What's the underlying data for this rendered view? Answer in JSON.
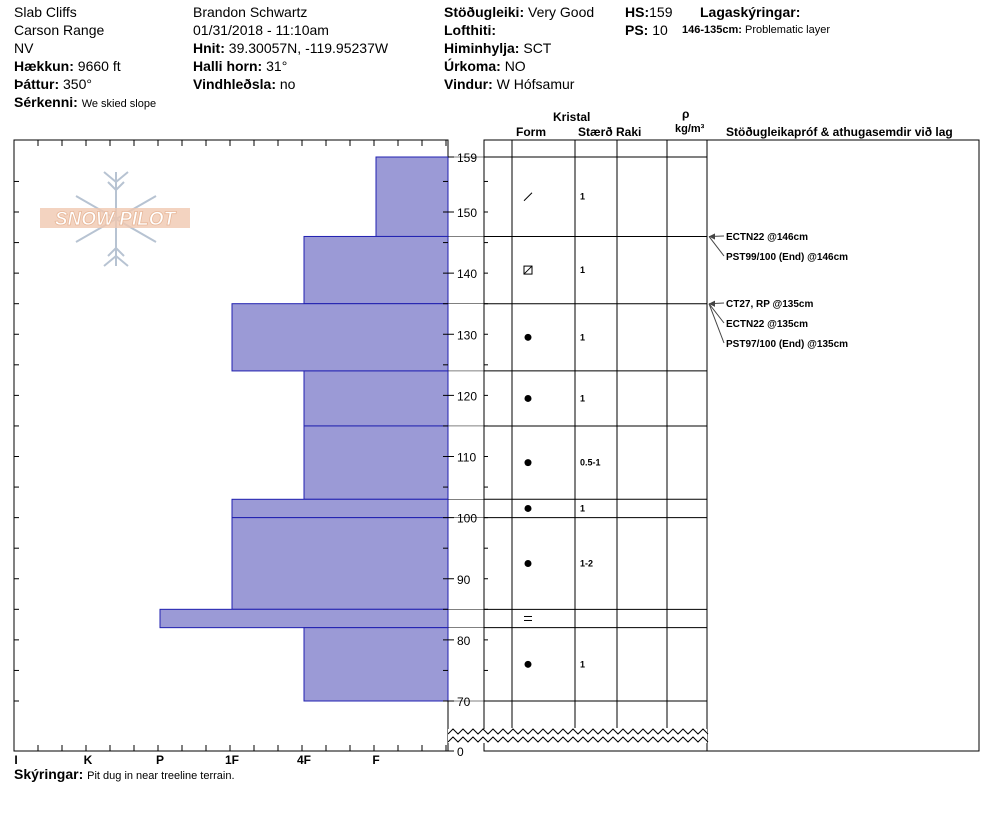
{
  "header": {
    "location": "Slab Cliffs",
    "range": "Carson Range",
    "state": "NV",
    "elevation_label": "Hækkun:",
    "elevation": "9660 ft",
    "aspect_label": "Þáttur:",
    "aspect": "350°",
    "feature_label": "Sérkenni:",
    "feature": "We skied slope",
    "observer": "Brandon Schwartz",
    "datetime": "01/31/2018 - 11:10am",
    "coords_label": "Hnit:",
    "coords": "39.30057N, -119.95237W",
    "slope_label": "Halli horn:",
    "slope": "31°",
    "wind_loading_label": "Vindhleðsla:",
    "wind_loading": "no",
    "stability_label": "Stöðugleiki:",
    "stability": "Very Good",
    "air_temp_label": "Lofthiti:",
    "air_temp": "",
    "sky_label": "Himinhylja:",
    "sky": "SCT",
    "precip_label": "Úrkoma:",
    "precip": "NO",
    "wind_label": "Vindur:",
    "wind": "W Hófsamur",
    "hs_label": "HS:",
    "hs": "159",
    "ps_label": "PS:",
    "ps": "10",
    "layer_notes_label": "Lagaskýringar:",
    "layer_note_range": "146-135cm:",
    "layer_note_text": "Problematic layer"
  },
  "columns": {
    "crystal": "Kristal",
    "form": "Form",
    "size": "Stærð",
    "moisture": "Raki",
    "density_symbol": "ρ",
    "density_unit": "kg/m³",
    "tests": "Stöðugleikapróf & athugasemdir við lag"
  },
  "footer": {
    "notes_label": "Skýringar:",
    "notes": "Pit dug in near treeline terrain."
  },
  "logo_text": "SNOW PILOT",
  "chart_data": {
    "type": "bar",
    "orientation": "horizontal",
    "description_axis": "height (cm)",
    "ylim": [
      0,
      159
    ],
    "y_ticks": [
      159,
      150,
      140,
      130,
      120,
      110,
      100,
      90,
      80,
      70,
      0
    ],
    "hardness_scale": [
      "I",
      "K",
      "P",
      "1F",
      "4F",
      "F"
    ],
    "hardness_index": {
      "F": 1,
      "4F": 2,
      "1F": 3,
      "P": 4,
      "K": 5,
      "I": 6
    },
    "layers": [
      {
        "top": 159,
        "bottom": 146,
        "hardness": "F",
        "form": "decomposing",
        "size": "1"
      },
      {
        "top": 146,
        "bottom": 135,
        "hardness": "4F",
        "form": "faceted-rounded",
        "size": "1"
      },
      {
        "top": 135,
        "bottom": 124,
        "hardness": "1F",
        "form": "rounded",
        "size": "1"
      },
      {
        "top": 124,
        "bottom": 115,
        "hardness": "4F",
        "form": "rounded",
        "size": "1"
      },
      {
        "top": 115,
        "bottom": 103,
        "hardness": "4F",
        "form": "rounded",
        "size": "0.5-1"
      },
      {
        "top": 103,
        "bottom": 100,
        "hardness": "1F",
        "form": "rounded",
        "size": "1"
      },
      {
        "top": 100,
        "bottom": 85,
        "hardness": "1F",
        "form": "rounded",
        "size": "1-2"
      },
      {
        "top": 85,
        "bottom": 82,
        "hardness": "P",
        "form": "ice-crust",
        "size": ""
      },
      {
        "top": 82,
        "bottom": 70,
        "hardness": "4F",
        "form": "rounded",
        "size": "1"
      }
    ],
    "tests": [
      {
        "depth": 146,
        "label": "ECTN22 @146cm"
      },
      {
        "depth": 146,
        "label": "PST99/100 (End) @146cm"
      },
      {
        "depth": 135,
        "label": "CT27, RP @135cm"
      },
      {
        "depth": 135,
        "label": "ECTN22 @135cm"
      },
      {
        "depth": 135,
        "label": "PST97/100 (End) @135cm"
      }
    ]
  }
}
